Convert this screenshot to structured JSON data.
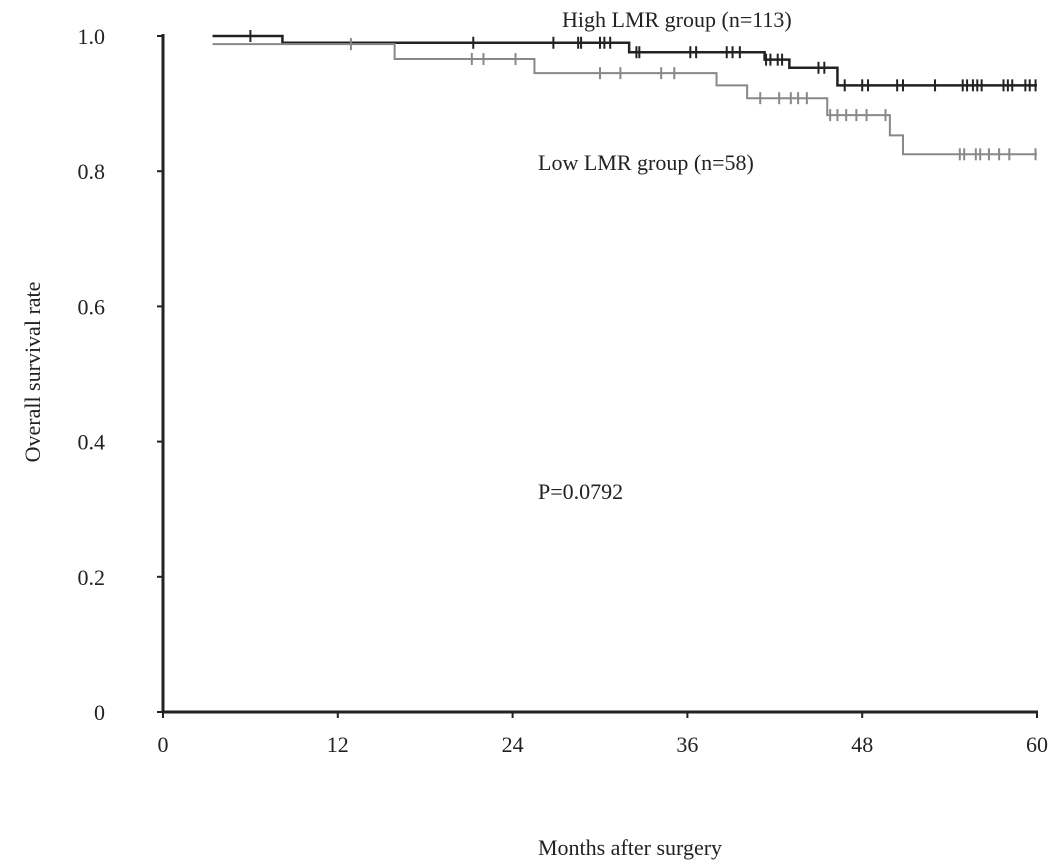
{
  "chart_data": {
    "type": "line",
    "subtype": "kaplan-meier step",
    "xlabel": "Months after surgery",
    "ylabel": "Overall survival rate",
    "xlim": [
      0,
      60
    ],
    "ylim": [
      0,
      1.0
    ],
    "xticks": [
      "0",
      "12",
      "24",
      "36",
      "48",
      "60"
    ],
    "yticks": [
      "0",
      "0.2",
      "0.4",
      "0.6",
      "0.8",
      "1.0"
    ],
    "grid": false,
    "annotation": "P=0.0792",
    "series": [
      {
        "name": "High LMR group (n=113)",
        "color": "#222222",
        "steps": [
          [
            3.4,
            1.0
          ],
          [
            8.2,
            0.99
          ],
          [
            32.0,
            0.976
          ],
          [
            41.3,
            0.965
          ],
          [
            43.0,
            0.953
          ],
          [
            46.3,
            0.927
          ],
          [
            60,
            0.927
          ]
        ],
        "censored": [
          6,
          21.3,
          26.8,
          28.5,
          28.7,
          30.0,
          30.3,
          30.7,
          32.5,
          32.7,
          36.2,
          36.6,
          38.7,
          39.1,
          39.6,
          41.4,
          41.7,
          42.2,
          42.5,
          45.0,
          45.4,
          46.8,
          48.0,
          48.4,
          50.4,
          50.8,
          53.0,
          54.9,
          55.2,
          55.6,
          55.9,
          56.2,
          57.7,
          58.0,
          58.3,
          59.2,
          59.5,
          59.9
        ]
      },
      {
        "name": "Low LMR group (n=58)",
        "color": "#888888",
        "steps": [
          [
            3.4,
            0.988
          ],
          [
            15.9,
            0.966
          ],
          [
            25.5,
            0.945
          ],
          [
            38.0,
            0.927
          ],
          [
            40.1,
            0.908
          ],
          [
            45.6,
            0.883
          ],
          [
            49.9,
            0.853
          ],
          [
            50.8,
            0.825
          ],
          [
            60,
            0.825
          ]
        ],
        "censored": [
          12.9,
          21.2,
          22.0,
          24.2,
          30.0,
          31.4,
          34.2,
          35.1,
          41.0,
          42.3,
          43.1,
          43.6,
          44.2,
          45.8,
          46.3,
          46.9,
          47.6,
          48.3,
          49.6,
          54.7,
          55.0,
          55.8,
          56.1,
          56.7,
          57.4,
          58.1,
          59.9
        ]
      }
    ]
  }
}
